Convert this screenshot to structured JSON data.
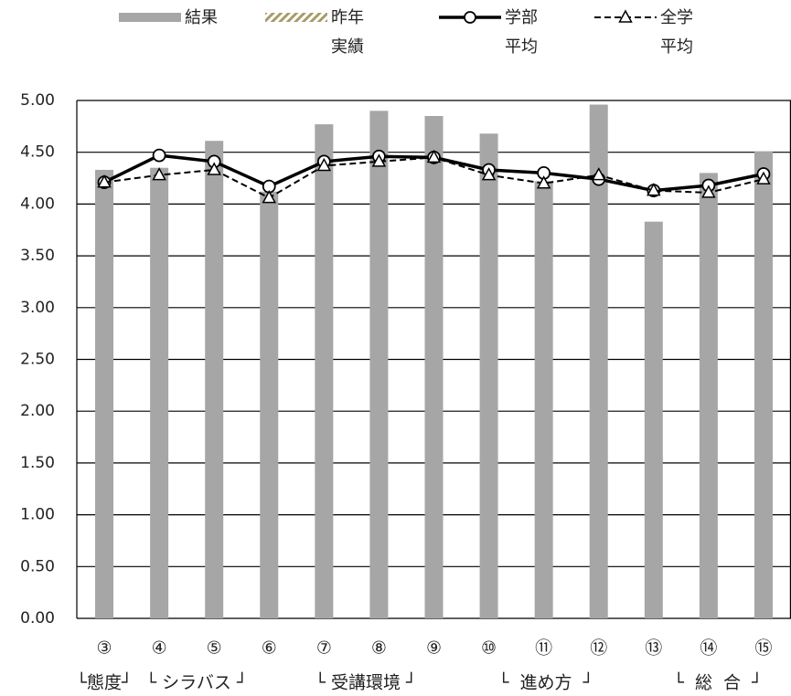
{
  "chart_data": {
    "type": "bar-line",
    "categories": [
      "③",
      "④",
      "⑤",
      "⑥",
      "⑦",
      "⑧",
      "⑨",
      "⑩",
      "⑪",
      "⑫",
      "⑬",
      "⑭",
      "⑮"
    ],
    "series": [
      {
        "name": "結果",
        "color": "#a6a6a6",
        "kind": "bar",
        "values": [
          4.33,
          4.35,
          4.61,
          4.12,
          4.77,
          4.9,
          4.85,
          4.68,
          4.22,
          4.96,
          3.83,
          4.3,
          4.51
        ]
      },
      {
        "name": "昨年実績",
        "color": "#c9b98a",
        "kind": "hatched",
        "values": [
          null,
          null,
          null,
          null,
          null,
          null,
          null,
          null,
          null,
          null,
          null,
          null,
          null
        ]
      },
      {
        "name": "学部平均",
        "color": "#000000",
        "kind": "line-circle",
        "values": [
          4.21,
          4.47,
          4.41,
          4.17,
          4.41,
          4.46,
          4.45,
          4.33,
          4.3,
          4.24,
          4.13,
          4.18,
          4.29
        ]
      },
      {
        "name": "全学平均",
        "color": "#000000",
        "kind": "dash-triangle",
        "values": [
          4.21,
          4.28,
          4.33,
          4.06,
          4.37,
          4.41,
          4.45,
          4.28,
          4.2,
          4.28,
          4.13,
          4.11,
          4.24
        ]
      }
    ],
    "group_labels": [
      "└態度┘",
      "└ シラバス ┘",
      "└ 受講環境 ┘",
      "└  進め方  ┘",
      "└  総  合  ┘"
    ],
    "ylim": [
      0,
      5
    ],
    "yticks": [
      {
        "value": 0,
        "label": "0.00"
      },
      {
        "value": 0.5,
        "label": "0.50"
      },
      {
        "value": 1,
        "label": "1.00"
      },
      {
        "value": 1.5,
        "label": "1.50"
      },
      {
        "value": 2,
        "label": "2.00"
      },
      {
        "value": 2.5,
        "label": "2.50"
      },
      {
        "value": 3,
        "label": "3.00"
      },
      {
        "value": 3.5,
        "label": "3.50"
      },
      {
        "value": 4,
        "label": "4.00"
      },
      {
        "value": 4.5,
        "label": "4.50"
      },
      {
        "value": 5,
        "label": "5.00"
      }
    ],
    "grid": true
  }
}
